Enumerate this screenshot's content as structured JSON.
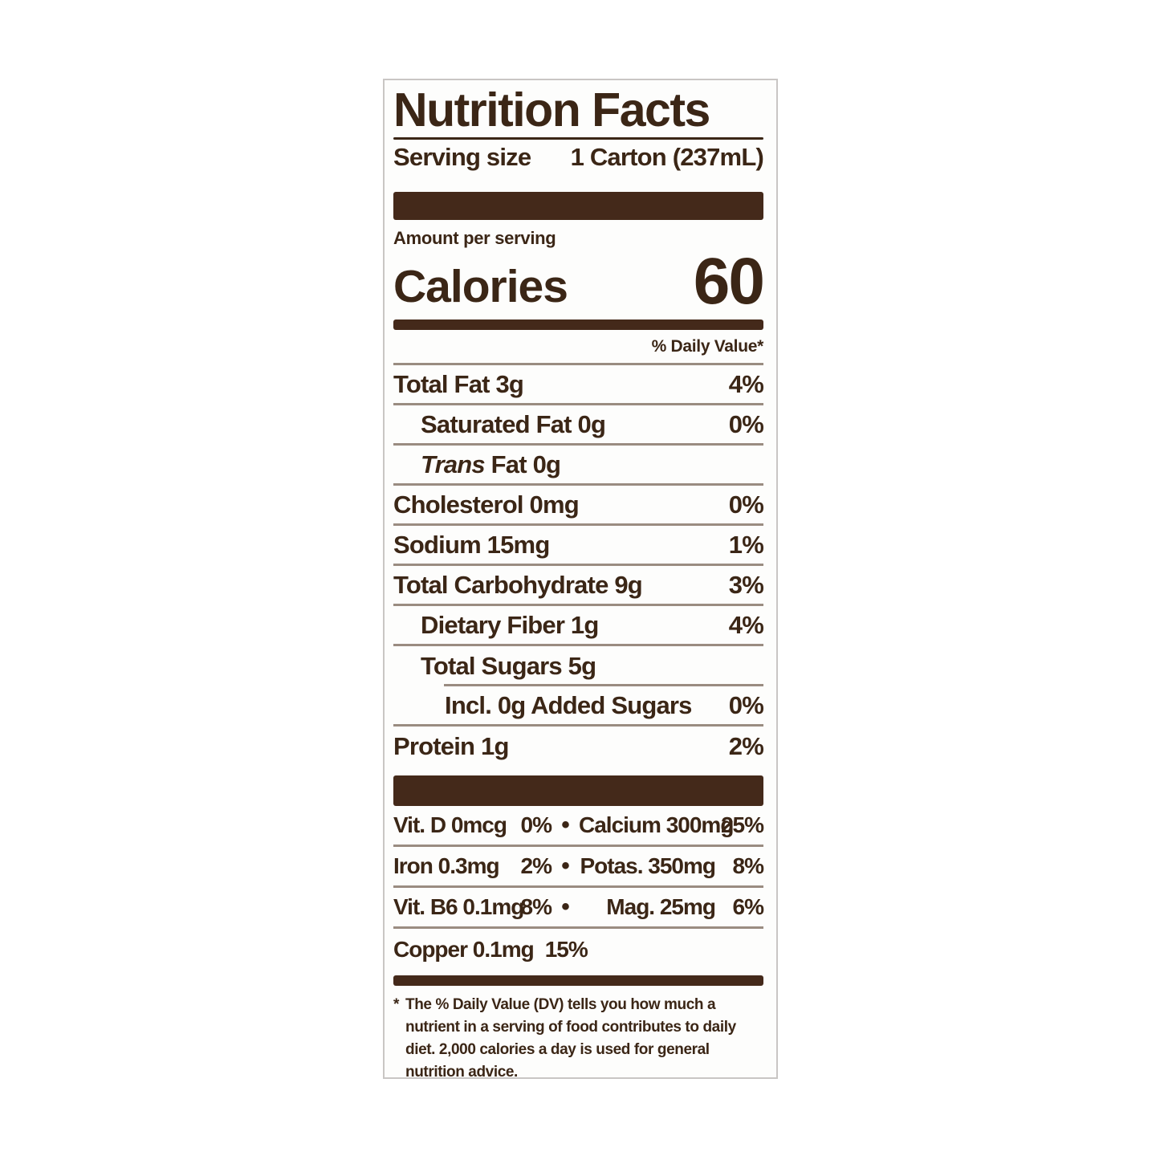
{
  "label": {
    "title": "Nutrition Facts",
    "serving_size_label": "Serving size",
    "serving_size_value": "1 Carton (237mL)",
    "amount_per_serving": "Amount per serving",
    "calories_label": "Calories",
    "calories_value": "60",
    "daily_value_header": "% Daily Value*",
    "separator_bullet": "•",
    "nutrients": [
      {
        "text": "Total Fat 3g",
        "pct": "4%",
        "indent": 0
      },
      {
        "text": "Saturated Fat 0g",
        "pct": "0%",
        "indent": 1
      },
      {
        "italic": "Trans",
        "text": " Fat 0g",
        "pct": "",
        "indent": 1
      },
      {
        "text": "Cholesterol 0mg",
        "pct": "0%",
        "indent": 0
      },
      {
        "text": "Sodium 15mg",
        "pct": "1%",
        "indent": 0
      },
      {
        "text": "Total Carbohydrate 9g",
        "pct": "3%",
        "indent": 0
      },
      {
        "text": "Dietary Fiber 1g",
        "pct": "4%",
        "indent": 1
      },
      {
        "text": "Total Sugars 5g",
        "pct": "",
        "indent": 1,
        "partial_rule_below": true
      },
      {
        "text": "Incl. 0g Added Sugars",
        "pct": "0%",
        "indent": 2
      },
      {
        "text": "Protein 1g",
        "pct": "2%",
        "indent": 0
      }
    ],
    "micronutrients": [
      {
        "left_name": "Vit. D 0mcg",
        "left_pct": "0%",
        "right_name": "Calcium 300mg",
        "right_pct": "25%"
      },
      {
        "left_name": "Iron 0.3mg",
        "left_pct": "2%",
        "right_name": "Potas. 350mg",
        "right_pct": "8%"
      },
      {
        "left_name": "Vit. B6 0.1mg",
        "left_pct": "8%",
        "right_name": "Mag. 25mg",
        "right_pct": "6%"
      },
      {
        "left_name": "Copper 0.1mg",
        "left_pct": "15%",
        "right_name": "",
        "right_pct": ""
      }
    ],
    "footnote_marker": "*",
    "footnote": "The % Daily Value (DV) tells you how much a nutrient in a serving of food contributes to daily diet. 2,000 calories a day is used for general nutrition advice.",
    "colors": {
      "ink": "#3b2616",
      "bar": "#44291a",
      "divider": "#9a8c81",
      "border": "#c9c6c4",
      "background": "#fdfdfc"
    }
  }
}
